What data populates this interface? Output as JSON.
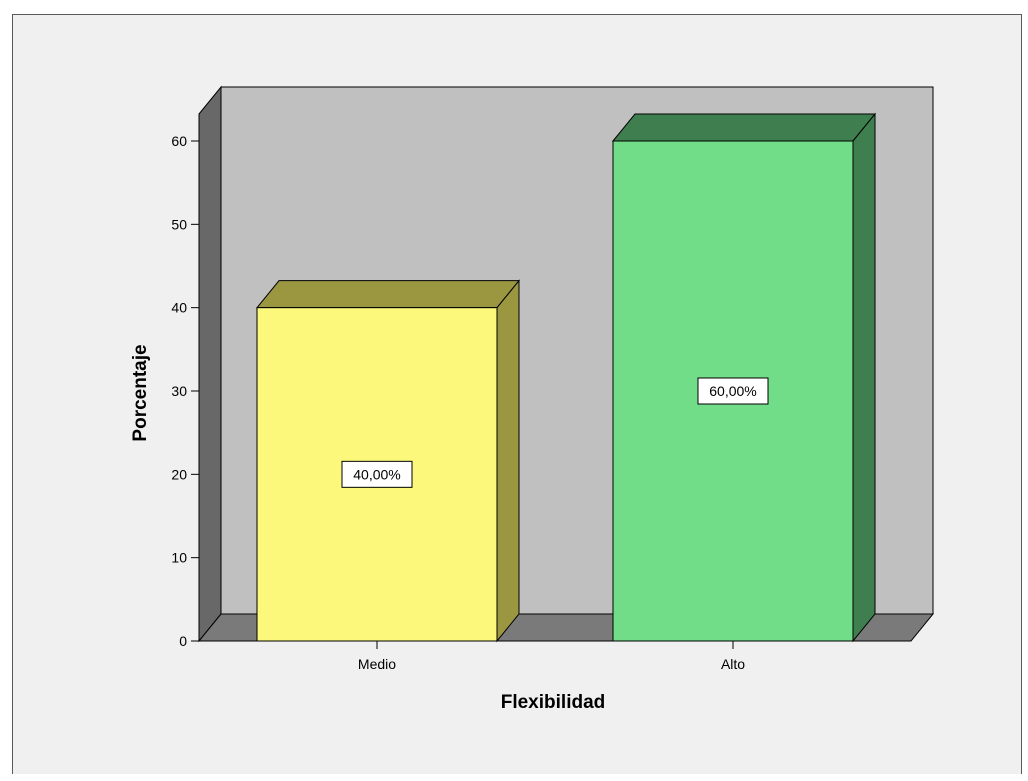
{
  "chart_data": {
    "type": "bar",
    "style": "3d",
    "title": "",
    "xlabel": "Flexibilidad",
    "ylabel": "Porcentaje",
    "categories": [
      "Medio",
      "Alto"
    ],
    "values": [
      40,
      60
    ],
    "data_labels": [
      "40,00%",
      "60,00%"
    ],
    "ylim": [
      0,
      60
    ],
    "yticks": [
      0,
      10,
      20,
      30,
      40,
      50,
      60
    ],
    "ytick_labels": [
      "0",
      "10",
      "20",
      "30",
      "40",
      "50",
      "60"
    ],
    "grid": false,
    "legend": "none",
    "colors": {
      "bars": [
        {
          "front": "#fbf87c",
          "top": "#9a9740",
          "side": "#9a9740"
        },
        {
          "front": "#72dd88",
          "top": "#3f7f4f",
          "side": "#3f7f4f"
        }
      ],
      "back_wall": "#c0c0c0",
      "side_wall": "#686868",
      "floor": "#7a7a7a",
      "chart_background": "#f0f0f0"
    }
  }
}
